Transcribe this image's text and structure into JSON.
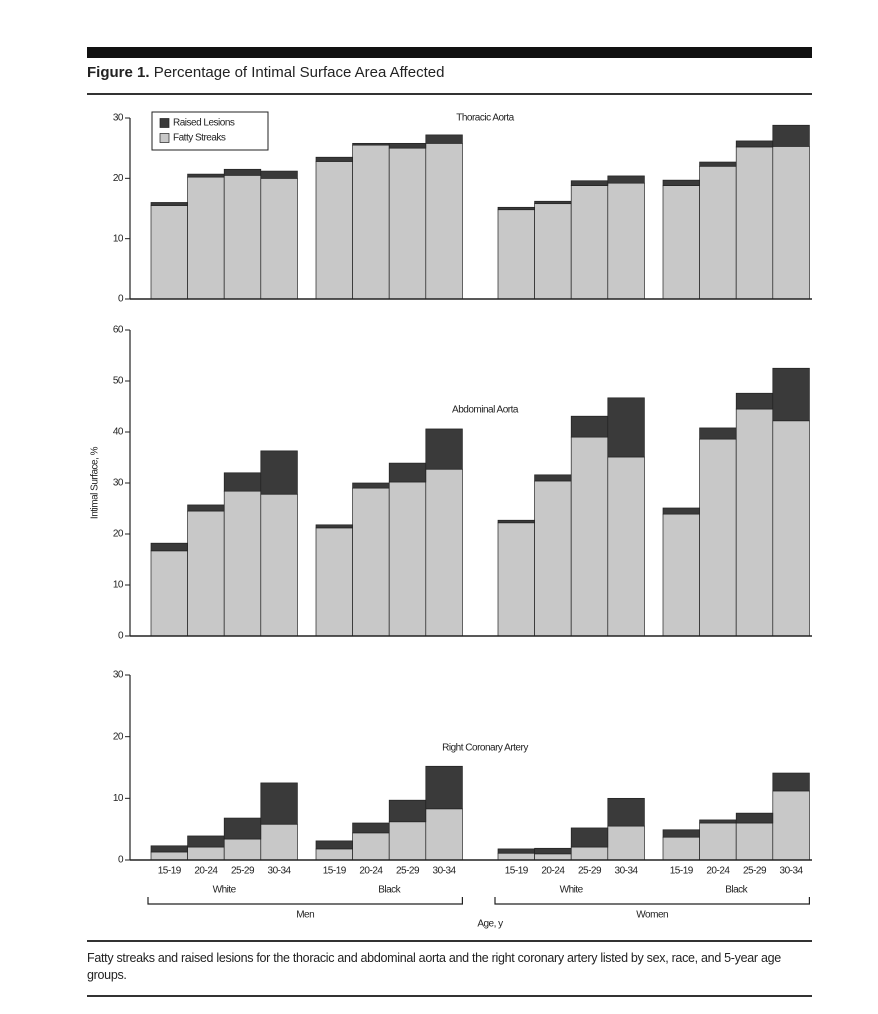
{
  "figure_label": "Figure 1.",
  "figure_title": "Percentage of Intimal Surface Area Affected",
  "caption": "Fatty streaks and raised lesions for the thoracic and abdominal aorta and the right coronary artery listed by sex, race, and 5-year age groups.",
  "chart_data": [
    {
      "type": "bar",
      "stacked": true,
      "title": "Thoracic Aorta",
      "ylim": [
        0,
        30
      ],
      "yticks": [
        0,
        10,
        20,
        30
      ],
      "legend": "top-left",
      "series": [
        {
          "name": "Fatty Streaks",
          "color": "#c8c8c8",
          "values": [
            15.5,
            20.2,
            20.5,
            20.0,
            22.8,
            25.5,
            25.0,
            25.8,
            14.8,
            15.8,
            18.8,
            19.2,
            18.8,
            22.0,
            25.2,
            25.3
          ]
        },
        {
          "name": "Raised Lesions",
          "color": "#3a3a3a",
          "values": [
            0.5,
            0.5,
            1.0,
            1.2,
            0.7,
            0.3,
            0.8,
            1.4,
            0.4,
            0.4,
            0.8,
            1.2,
            0.9,
            0.7,
            1.0,
            3.5
          ]
        }
      ]
    },
    {
      "type": "bar",
      "stacked": true,
      "title": "Abdominal Aorta",
      "ylabel": "Intimal Surface, %",
      "ylim": [
        0,
        60
      ],
      "yticks": [
        0,
        10,
        20,
        30,
        40,
        50,
        60
      ],
      "series": [
        {
          "color": "#c8c8c8",
          "values": [
            16.7,
            24.5,
            28.4,
            27.8,
            21.2,
            29.0,
            30.2,
            32.7,
            22.2,
            30.4,
            39.0,
            35.1,
            23.9,
            38.6,
            44.5,
            42.2
          ]
        },
        {
          "color": "#3a3a3a",
          "values": [
            1.5,
            1.2,
            3.6,
            8.5,
            0.6,
            1.0,
            3.7,
            7.9,
            0.5,
            1.2,
            4.1,
            11.6,
            1.2,
            2.2,
            3.1,
            10.3
          ]
        }
      ]
    },
    {
      "type": "bar",
      "stacked": true,
      "title": "Right Coronary Artery",
      "xlabel": "Age, y",
      "ylim": [
        0,
        30
      ],
      "yticks": [
        0,
        10,
        20,
        30
      ],
      "categories": [
        "15-19",
        "20-24",
        "25-29",
        "30-34",
        "15-19",
        "20-24",
        "25-29",
        "30-34",
        "15-19",
        "20-24",
        "25-29",
        "30-34",
        "15-19",
        "20-24",
        "25-29",
        "30-34"
      ],
      "race_groups": [
        "White",
        "Black",
        "White",
        "Black"
      ],
      "sex_groups": [
        "Men",
        "Women"
      ],
      "series": [
        {
          "color": "#c8c8c8",
          "values": [
            1.3,
            2.1,
            3.4,
            5.8,
            1.8,
            4.4,
            6.2,
            8.3,
            1.1,
            1.0,
            2.1,
            5.5,
            3.7,
            6.0,
            6.0,
            11.2
          ]
        },
        {
          "color": "#3a3a3a",
          "values": [
            1.0,
            1.8,
            3.4,
            6.7,
            1.3,
            1.6,
            3.5,
            6.9,
            0.7,
            0.9,
            3.1,
            4.5,
            1.2,
            0.5,
            1.6,
            2.9
          ]
        }
      ]
    }
  ]
}
